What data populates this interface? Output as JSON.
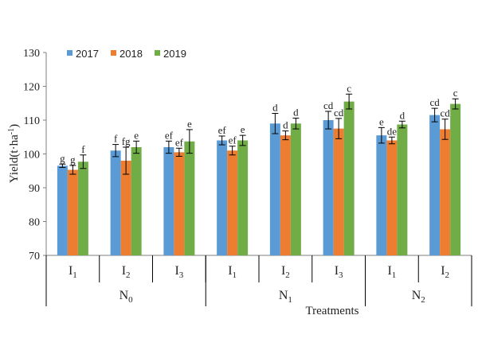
{
  "chart_data": {
    "type": "bar",
    "title": "",
    "ylabel_main": "Yield(t·ha",
    "ylabel_sup": "-1",
    "ylabel_close": ")",
    "xlabel": "Treatments",
    "ylim": [
      70,
      130
    ],
    "yticks": [
      70,
      80,
      90,
      100,
      110,
      120,
      130
    ],
    "legend_position": "top-left",
    "series": [
      {
        "name": "2017",
        "color": "#5B9BD5",
        "values": [
          96.5,
          101.0,
          102.0,
          104.0,
          109.0,
          110.0,
          105.5,
          111.5
        ],
        "errors": [
          0.5,
          1.8,
          1.8,
          1.3,
          3.0,
          2.6,
          2.3,
          2.0
        ],
        "letters": [
          "g",
          "f",
          "ef",
          "ef",
          "d",
          "cd",
          "e",
          "cd"
        ]
      },
      {
        "name": "2018",
        "color": "#ED7D31",
        "values": [
          95.3,
          98.0,
          100.5,
          101.0,
          105.5,
          107.5,
          104.0,
          107.3
        ],
        "errors": [
          1.3,
          4.0,
          1.2,
          1.3,
          1.3,
          3.0,
          1.0,
          3.0
        ],
        "letters": [
          "g",
          "fg",
          "ef",
          "ef",
          "d",
          "cd",
          "de",
          "cd"
        ]
      },
      {
        "name": "2019",
        "color": "#70AD47",
        "values": [
          97.7,
          102.0,
          103.7,
          104.0,
          109.0,
          115.5,
          108.7,
          114.8
        ],
        "errors": [
          2.0,
          1.8,
          3.5,
          1.5,
          1.6,
          2.2,
          1.0,
          1.5
        ],
        "letters": [
          "f",
          "e",
          "e",
          "e",
          "d",
          "c",
          "d",
          "c"
        ]
      }
    ],
    "categories": [
      {
        "main": "I",
        "sub": "1"
      },
      {
        "main": "I",
        "sub": "2"
      },
      {
        "main": "I",
        "sub": "3"
      },
      {
        "main": "I",
        "sub": "1"
      },
      {
        "main": "I",
        "sub": "2"
      },
      {
        "main": "I",
        "sub": "3"
      },
      {
        "main": "I",
        "sub": "1"
      },
      {
        "main": "I",
        "sub": "2"
      }
    ],
    "groups": [
      {
        "main": "N",
        "sub": "0",
        "span": 3
      },
      {
        "main": "N",
        "sub": "1",
        "span": 3
      },
      {
        "main": "N",
        "sub": "2",
        "span": 2
      }
    ]
  }
}
